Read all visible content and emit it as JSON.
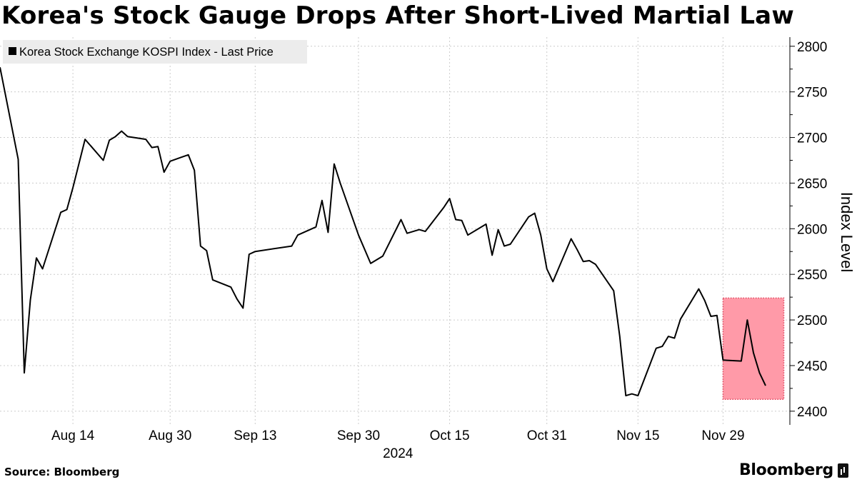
{
  "header": {
    "title": "Korea's Stock Gauge Drops After Short-Lived Martial Law"
  },
  "footer": {
    "source": "Source: Bloomberg",
    "brand": "Bloomberg"
  },
  "colors": {
    "line": "#000000",
    "highlight_fill": "#ff9aa8",
    "highlight_border": "#e0415a",
    "grid": "#cccccc",
    "legend_bg": "#ececec"
  },
  "chart_data": {
    "type": "line",
    "title": "Korea's Stock Gauge Drops After Short-Lived Martial Law",
    "ylabel": "Index Level",
    "xlabel": "",
    "year_label": "2024",
    "ylim": [
      2385,
      2810
    ],
    "y_ticks": [
      2400,
      2450,
      2500,
      2550,
      2600,
      2650,
      2700,
      2750,
      2800
    ],
    "x_ticks": [
      "Aug 14",
      "Aug 30",
      "Sep 13",
      "Sep 30",
      "Oct 15",
      "Oct 31",
      "Nov 15",
      "Nov 29"
    ],
    "grid": true,
    "legend_position": "top-left",
    "y_axis_side": "right",
    "series": [
      {
        "name": "Korea Stock Exchange KOSPI Index - Last Price",
        "x": [
          "2024-08-02",
          "2024-08-05",
          "2024-08-06",
          "2024-08-07",
          "2024-08-08",
          "2024-08-09",
          "2024-08-12",
          "2024-08-13",
          "2024-08-14",
          "2024-08-16",
          "2024-08-19",
          "2024-08-20",
          "2024-08-21",
          "2024-08-22",
          "2024-08-23",
          "2024-08-26",
          "2024-08-27",
          "2024-08-28",
          "2024-08-29",
          "2024-08-30",
          "2024-09-02",
          "2024-09-03",
          "2024-09-04",
          "2024-09-05",
          "2024-09-06",
          "2024-09-09",
          "2024-09-10",
          "2024-09-11",
          "2024-09-12",
          "2024-09-13",
          "2024-09-19",
          "2024-09-20",
          "2024-09-23",
          "2024-09-24",
          "2024-09-25",
          "2024-09-26",
          "2024-09-27",
          "2024-09-30",
          "2024-10-02",
          "2024-10-04",
          "2024-10-07",
          "2024-10-08",
          "2024-10-10",
          "2024-10-11",
          "2024-10-14",
          "2024-10-15",
          "2024-10-16",
          "2024-10-17",
          "2024-10-18",
          "2024-10-21",
          "2024-10-22",
          "2024-10-23",
          "2024-10-24",
          "2024-10-25",
          "2024-10-28",
          "2024-10-29",
          "2024-10-30",
          "2024-10-31",
          "2024-11-01",
          "2024-11-04",
          "2024-11-05",
          "2024-11-06",
          "2024-11-07",
          "2024-11-08",
          "2024-11-11",
          "2024-11-12",
          "2024-11-13",
          "2024-11-14",
          "2024-11-15",
          "2024-11-18",
          "2024-11-19",
          "2024-11-20",
          "2024-11-21",
          "2024-11-22",
          "2024-11-25",
          "2024-11-26",
          "2024-11-27",
          "2024-11-28",
          "2024-11-29",
          "2024-12-02",
          "2024-12-03",
          "2024-12-04",
          "2024-12-05",
          "2024-12-06"
        ],
        "values": [
          2777,
          2676,
          2442,
          2522,
          2568,
          2556,
          2618,
          2621,
          2645,
          2698,
          2675,
          2697,
          2701,
          2707,
          2701,
          2698,
          2689,
          2690,
          2662,
          2674,
          2681,
          2664,
          2581,
          2576,
          2544,
          2536,
          2523,
          2513,
          2572,
          2575,
          2581,
          2593,
          2602,
          2631,
          2596,
          2671,
          2650,
          2593,
          2562,
          2570,
          2610,
          2595,
          2599,
          2597,
          2623,
          2633,
          2610,
          2609,
          2593,
          2605,
          2571,
          2599,
          2581,
          2583,
          2613,
          2617,
          2593,
          2556,
          2542,
          2589,
          2577,
          2564,
          2565,
          2561,
          2532,
          2482,
          2417,
          2419,
          2417,
          2469,
          2471,
          2482,
          2480,
          2501,
          2534,
          2521,
          2504,
          2505,
          2456,
          2455,
          2500,
          2464,
          2442,
          2428
        ]
      }
    ],
    "highlight": {
      "from": "2024-11-29",
      "to": "2024-12-09",
      "y_range": [
        2413,
        2524
      ]
    }
  }
}
